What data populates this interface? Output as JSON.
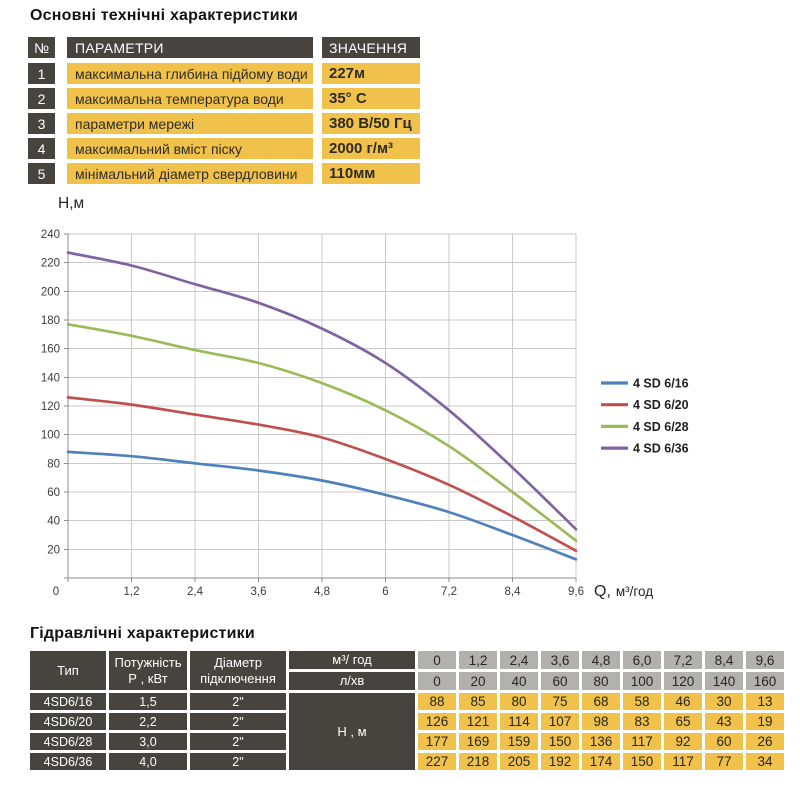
{
  "section1": {
    "title": "Основні технічні характеристики"
  },
  "top_table": {
    "headers": {
      "num": "№",
      "param": "ПАРАМЕТРИ",
      "value": "ЗНАЧЕННЯ"
    },
    "rows": [
      {
        "num": "1",
        "param": "максимальна глибина підйому води",
        "value": "227м"
      },
      {
        "num": "2",
        "param": "максимальна температура води",
        "value": "35° С"
      },
      {
        "num": "3",
        "param": "параметри мережі",
        "value": "380 В/50 Гц"
      },
      {
        "num": "4",
        "param": "максимальний вміст піску",
        "value": "2000 г/м³"
      },
      {
        "num": "5",
        "param": "мінімальний діаметр свердловини",
        "value": "110мм"
      }
    ]
  },
  "chart_data": {
    "type": "line",
    "title": "",
    "ylabel": "Н,м",
    "xlabel": "Q, м³/год",
    "x": [
      0,
      1.2,
      2.4,
      3.6,
      4.8,
      6,
      7.2,
      8.4,
      9.6
    ],
    "x_tick_labels": [
      "0",
      "1,2",
      "2,4",
      "3,6",
      "4,8",
      "6",
      "7,2",
      "8,4",
      "9,6"
    ],
    "ylim": [
      0,
      240
    ],
    "y_tick_step": 20,
    "grid": true,
    "legend_position": "right",
    "series": [
      {
        "name": "4 SD 6/16",
        "color": "#4F81BD",
        "values": [
          88,
          85,
          80,
          75,
          68,
          58,
          46,
          30,
          13
        ]
      },
      {
        "name": "4 SD 6/20",
        "color": "#C0504D",
        "values": [
          126,
          121,
          114,
          107,
          98,
          83,
          65,
          43,
          19
        ]
      },
      {
        "name": "4 SD 6/28",
        "color": "#9BBB59",
        "values": [
          177,
          169,
          159,
          150,
          136,
          117,
          92,
          60,
          26
        ]
      },
      {
        "name": "4 SD 6/36",
        "color": "#8064A2",
        "values": [
          227,
          218,
          205,
          192,
          174,
          150,
          117,
          77,
          34
        ]
      }
    ]
  },
  "section3": {
    "title": "Гідравлічні характеристики"
  },
  "hydraulic_table": {
    "headers": {
      "type": "Тип",
      "power_line1": "Потужність",
      "power_line2": "Р , кВт",
      "diameter_line1": "Діаметр",
      "diameter_line2": "підключення",
      "flow_m3": "м³/ год",
      "flow_lmin": "л/хв",
      "head": "Н , м",
      "m3_values": [
        "0",
        "1,2",
        "2,4",
        "3,6",
        "4,8",
        "6,0",
        "7,2",
        "8,4",
        "9,6"
      ],
      "lmin_values": [
        "0",
        "20",
        "40",
        "60",
        "80",
        "100",
        "120",
        "140",
        "160"
      ]
    },
    "rows": [
      {
        "type": "4SD6/16",
        "power": "1,5",
        "diameter": "2\"",
        "values": [
          "88",
          "85",
          "80",
          "75",
          "68",
          "58",
          "46",
          "30",
          "13"
        ]
      },
      {
        "type": "4SD6/20",
        "power": "2,2",
        "diameter": "2\"",
        "values": [
          "126",
          "121",
          "114",
          "107",
          "98",
          "83",
          "65",
          "43",
          "19"
        ]
      },
      {
        "type": "4SD6/28",
        "power": "3,0",
        "diameter": "2\"",
        "values": [
          "177",
          "169",
          "159",
          "150",
          "136",
          "117",
          "92",
          "60",
          "26"
        ]
      },
      {
        "type": "4SD6/36",
        "power": "4,0",
        "diameter": "2\"",
        "values": [
          "227",
          "218",
          "205",
          "192",
          "174",
          "150",
          "117",
          "77",
          "34"
        ]
      }
    ]
  },
  "colors": {
    "table_dark": "#474440",
    "table_yellow": "#F0C24B",
    "table_gray": "#B3B1AE",
    "grid_line": "#C9C9C9",
    "axis_line": "#8C8C8C"
  }
}
